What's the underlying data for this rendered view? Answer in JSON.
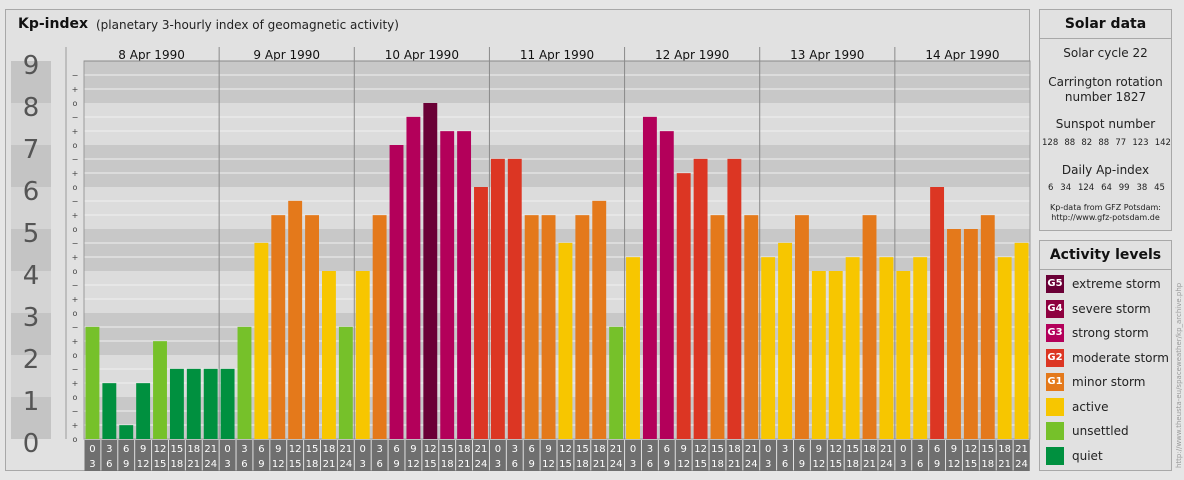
{
  "header": {
    "title": "Kp-index",
    "subtitle": "(planetary 3-hourly index of geomagnetic activity)"
  },
  "chart_data": {
    "type": "bar",
    "title": "Kp-index",
    "subtitle": "(planetary 3-hourly index of geomagnetic activity)",
    "days": [
      "8 Apr 1990",
      "9 Apr 1990",
      "10 Apr 1990",
      "11 Apr 1990",
      "12 Apr 1990",
      "13 Apr 1990",
      "14 Apr 1990"
    ],
    "interval_labels": [
      [
        "0",
        "3"
      ],
      [
        "3",
        "6"
      ],
      [
        "6",
        "9"
      ],
      [
        "9",
        "12"
      ],
      [
        "12",
        "15"
      ],
      [
        "15",
        "18"
      ],
      [
        "18",
        "21"
      ],
      [
        "21",
        "24"
      ]
    ],
    "y_ticks": [
      "0",
      "1",
      "2",
      "3",
      "4",
      "5",
      "6",
      "7",
      "8",
      "9"
    ],
    "minor_tick_labels": [
      "o",
      "+",
      "−"
    ],
    "ylim": [
      0,
      9
    ],
    "grid": true,
    "values": [
      [
        2.67,
        1.33,
        0.33,
        1.33,
        2.33,
        1.67,
        1.67,
        1.67
      ],
      [
        1.67,
        2.67,
        4.67,
        5.33,
        5.67,
        5.33,
        4.0,
        2.67
      ],
      [
        4.0,
        5.33,
        7.0,
        7.67,
        8.0,
        7.33,
        7.33,
        6.0
      ],
      [
        6.67,
        6.67,
        5.33,
        5.33,
        4.67,
        5.33,
        5.67,
        2.67
      ],
      [
        4.33,
        7.67,
        7.33,
        6.33,
        6.67,
        5.33,
        6.67,
        5.33
      ],
      [
        4.33,
        4.67,
        5.33,
        4.0,
        4.0,
        4.33,
        5.33,
        4.33
      ],
      [
        4.0,
        4.33,
        6.0,
        5.0,
        5.0,
        5.33,
        4.33,
        4.67
      ]
    ],
    "levels": [
      {
        "min": 0,
        "color": "#00903f"
      },
      {
        "min": 2,
        "color": "#76c12a"
      },
      {
        "min": 4,
        "color": "#f7c600"
      },
      {
        "min": 5,
        "color": "#e4791b"
      },
      {
        "min": 6,
        "color": "#dc3623"
      },
      {
        "min": 7,
        "color": "#b3005a"
      },
      {
        "min": 8,
        "color": "#6a0036"
      }
    ]
  },
  "solar": {
    "title": "Solar data",
    "cycle": "Solar cycle 22",
    "carrington_line1": "Carrington rotation",
    "carrington_line2": "number 1827",
    "sunspot_label": "Sunspot number",
    "sunspot_values": [
      "128",
      "88",
      "82",
      "88",
      "77",
      "123",
      "142"
    ],
    "ap_label": "Daily Ap-index",
    "ap_values": [
      "6",
      "34",
      "124",
      "64",
      "99",
      "38",
      "45"
    ],
    "source_line1": "Kp-data from GFZ Potsdam:",
    "source_line2": "http://www.gfz-potsdam.de"
  },
  "activity": {
    "title": "Activity levels",
    "levels": [
      {
        "badge": "G5",
        "label": "extreme storm",
        "color": "#6a0036"
      },
      {
        "badge": "G4",
        "label": "severe storm",
        "color": "#8e003f"
      },
      {
        "badge": "G3",
        "label": "strong storm",
        "color": "#b3005a"
      },
      {
        "badge": "G2",
        "label": "moderate storm",
        "color": "#dc3623"
      },
      {
        "badge": "G1",
        "label": "minor storm",
        "color": "#e4791b"
      },
      {
        "badge": "",
        "label": "active",
        "color": "#f7c600"
      },
      {
        "badge": "",
        "label": "unsettled",
        "color": "#76c12a"
      },
      {
        "badge": "",
        "label": "quiet",
        "color": "#00903f"
      }
    ]
  },
  "credit": "http://www.theusta-eu/spaceweather/kp_archive.php"
}
